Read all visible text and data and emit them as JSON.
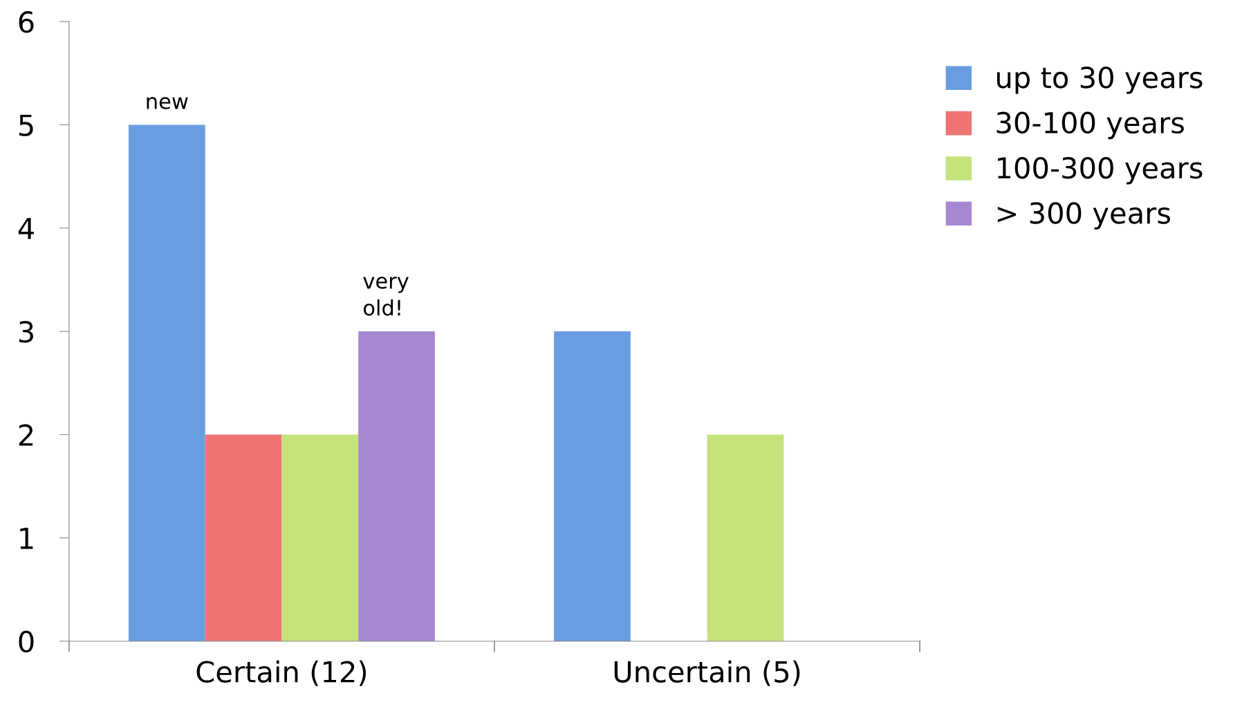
{
  "chart_data": {
    "type": "bar",
    "categories": [
      "Certain (12)",
      "Uncertain (5)"
    ],
    "series": [
      {
        "name": "up to 30 years",
        "color": "#6a9de0",
        "values": [
          5,
          3
        ]
      },
      {
        "name": "30-100 years",
        "color": "#ee7474",
        "values": [
          2,
          0
        ]
      },
      {
        "name": "100-300 years",
        "color": "#c4e37c",
        "values": [
          2,
          2
        ]
      },
      {
        "name": "> 300 years",
        "color": "#a688d0",
        "values": [
          3,
          0
        ]
      }
    ],
    "ylim": [
      0,
      6
    ],
    "yticks": [
      0,
      1,
      2,
      3,
      4,
      5,
      6
    ],
    "grid": false,
    "legend": "top right",
    "annotations": [
      "new",
      "very\nold!"
    ]
  }
}
